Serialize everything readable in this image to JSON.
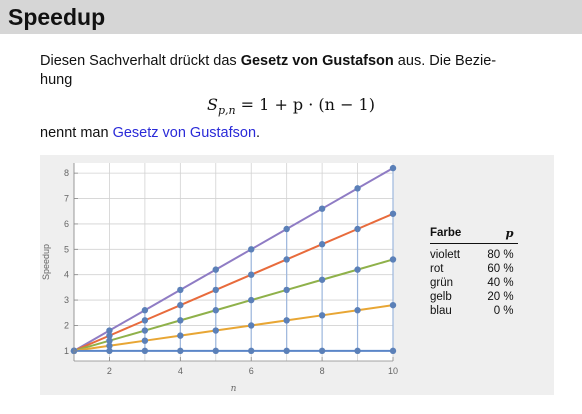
{
  "header": {
    "title": "Speedup"
  },
  "paragraph": {
    "text_before": "Diesen Sachverhalt drückt das ",
    "bold_term": "Gesetz von Gustafson",
    "text_after": " aus. Die Bezie-",
    "line2": "hung"
  },
  "formula": {
    "lhs": "S",
    "sub": "p,n",
    "rhs": " = 1 + p · (n − 1)"
  },
  "naming": {
    "prefix": "nennt man ",
    "link": "Gesetz von Gustafson",
    "suffix": "."
  },
  "legend": {
    "head_farbe": "Farbe",
    "head_p": "p",
    "rows": [
      {
        "farbe": "violett",
        "p": "80 %"
      },
      {
        "farbe": "rot",
        "p": "60 %"
      },
      {
        "farbe": "grün",
        "p": "40 %"
      },
      {
        "farbe": "gelb",
        "p": "20 %"
      },
      {
        "farbe": "blau",
        "p": "0 %"
      }
    ]
  },
  "chart_data": {
    "type": "line",
    "xlabel": "n",
    "ylabel": "Speedup",
    "xlim": [
      1,
      10
    ],
    "ylim": [
      0.6,
      8.4
    ],
    "x_ticks": [
      2,
      4,
      6,
      8,
      10
    ],
    "y_ticks": [
      1,
      2,
      3,
      4,
      5,
      6,
      7,
      8
    ],
    "grid": true,
    "x": [
      1,
      2,
      3,
      4,
      5,
      6,
      7,
      8,
      9,
      10
    ],
    "series": [
      {
        "color": "#8f7cc4",
        "values": [
          1,
          1.8,
          2.6,
          3.4,
          4.2,
          5.0,
          5.8,
          6.6,
          7.4,
          8.2
        ]
      },
      {
        "color": "#e86b3c",
        "values": [
          1,
          1.6,
          2.2,
          2.8,
          3.4,
          4.0,
          4.6,
          5.2,
          5.8,
          6.4
        ]
      },
      {
        "color": "#8fb14a",
        "values": [
          1,
          1.4,
          1.8,
          2.2,
          2.6,
          3.0,
          3.4,
          3.8,
          4.2,
          4.6
        ]
      },
      {
        "color": "#e8a634",
        "values": [
          1,
          1.2,
          1.4,
          1.6,
          1.8,
          2.0,
          2.2,
          2.4,
          2.6,
          2.8
        ]
      },
      {
        "color": "#5b86c8",
        "values": [
          1,
          1,
          1,
          1,
          1,
          1,
          1,
          1,
          1,
          1
        ]
      }
    ],
    "point_color": "#5b80b8"
  }
}
